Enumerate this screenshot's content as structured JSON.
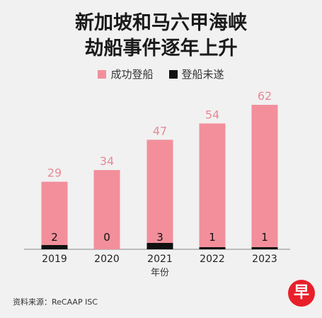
{
  "header": {
    "title_line1": "新加坡和马六甲海峡",
    "title_line2": "劫船事件逐年上升"
  },
  "source": "资料来源：ReCAAP ISC",
  "logo_text": "早",
  "colors": {
    "success": "#f28f9b",
    "attempt": "#111111",
    "value_label": "#e58a96",
    "background": "#f1f1f1"
  },
  "chart_data": {
    "type": "bar",
    "title": "新加坡和马六甲海峡劫船事件逐年上升",
    "xlabel": "年份",
    "ylabel": "",
    "categories": [
      "2019",
      "2020",
      "2021",
      "2022",
      "2023"
    ],
    "series": [
      {
        "name": "成功登船",
        "values": [
          29,
          34,
          47,
          54,
          62
        ]
      },
      {
        "name": "登船未遂",
        "values": [
          2,
          0,
          3,
          1,
          1
        ]
      }
    ],
    "ylim": [
      0,
      70
    ],
    "grid": false,
    "legend": "top-center"
  }
}
